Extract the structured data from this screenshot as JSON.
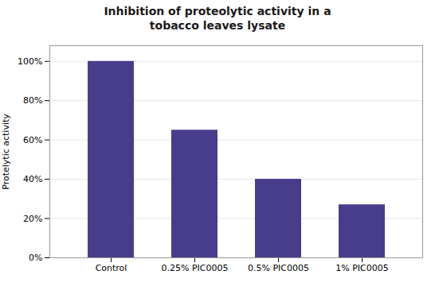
{
  "chart_data": {
    "type": "bar",
    "title": "Inhibition of proteolytic activity in a\ntobacco leaves lysate",
    "ylabel": "Protelytic activity",
    "categories": [
      "Control",
      "0.25% PIC0005",
      "0.5% PIC0005",
      "1% PIC0005"
    ],
    "values": [
      1.0,
      0.65,
      0.4,
      0.27
    ],
    "color": "#483D8B",
    "ylim": [
      0,
      1.08
    ],
    "yticks": [
      {
        "value": 0,
        "label": "0%"
      },
      {
        "value": 0.2,
        "label": "20%"
      },
      {
        "value": 0.4,
        "label": "40%"
      },
      {
        "value": 0.6,
        "label": "60%"
      },
      {
        "value": 0.8,
        "label": "80%"
      },
      {
        "value": 1.0,
        "label": "100%"
      }
    ],
    "grid": true
  }
}
